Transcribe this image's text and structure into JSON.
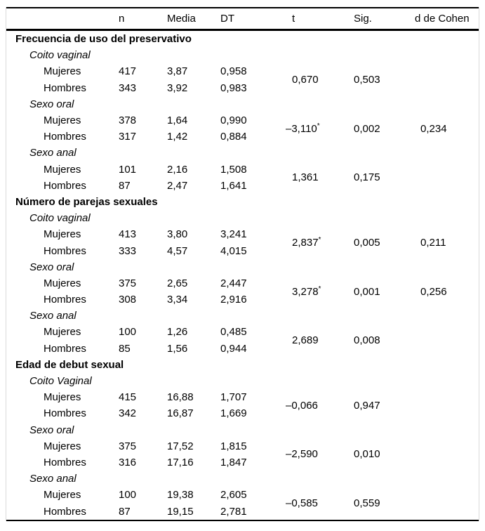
{
  "table": {
    "header": {
      "label": "",
      "columns": [
        "n",
        "Media",
        "DT",
        "t",
        "Sig.",
        "d de Cohen"
      ]
    },
    "sections": [
      {
        "title": "Frecuencia de uso del preservativo",
        "groups": [
          {
            "name": "Coito vaginal",
            "rows": [
              {
                "label": "Mujeres",
                "n": "417",
                "media": "3,87",
                "dt": "0,958"
              },
              {
                "label": "Hombres",
                "n": "343",
                "media": "3,92",
                "dt": "0,983"
              }
            ],
            "t": "0,670",
            "t_star": "",
            "sig": "0,503",
            "d": ""
          },
          {
            "name": "Sexo oral",
            "rows": [
              {
                "label": "Mujeres",
                "n": "378",
                "media": "1,64",
                "dt": "0,990"
              },
              {
                "label": "Hombres",
                "n": "317",
                "media": "1,42",
                "dt": "0,884"
              }
            ],
            "t": "–3,110",
            "t_star": "*",
            "sig": "0,002",
            "d": "0,234"
          },
          {
            "name": "Sexo anal",
            "rows": [
              {
                "label": "Mujeres",
                "n": "101",
                "media": "2,16",
                "dt": "1,508"
              },
              {
                "label": "Hombres",
                "n": "87",
                "media": "2,47",
                "dt": "1,641"
              }
            ],
            "t": "1,361",
            "t_star": "",
            "sig": "0,175",
            "d": ""
          }
        ]
      },
      {
        "title": "Número de parejas sexuales",
        "groups": [
          {
            "name": "Coito vaginal",
            "rows": [
              {
                "label": "Mujeres",
                "n": "413",
                "media": "3,80",
                "dt": "3,241"
              },
              {
                "label": "Hombres",
                "n": "333",
                "media": "4,57",
                "dt": "4,015"
              }
            ],
            "t": "2,837",
            "t_star": "*",
            "sig": "0,005",
            "d": "0,211"
          },
          {
            "name": "Sexo oral",
            "rows": [
              {
                "label": "Mujeres",
                "n": "375",
                "media": "2,65",
                "dt": "2,447"
              },
              {
                "label": "Hombres",
                "n": "308",
                "media": "3,34",
                "dt": "2,916"
              }
            ],
            "t": "3,278",
            "t_star": "*",
            "sig": "0,001",
            "d": "0,256"
          },
          {
            "name": "Sexo anal",
            "rows": [
              {
                "label": "Mujeres",
                "n": "100",
                "media": "1,26",
                "dt": "0,485"
              },
              {
                "label": "Hombres",
                "n": "85",
                "media": "1,56",
                "dt": "0,944"
              }
            ],
            "t": "2,689",
            "t_star": "",
            "sig": "0,008",
            "d": ""
          }
        ]
      },
      {
        "title": "Edad de debut sexual",
        "groups": [
          {
            "name": "Coito Vaginal",
            "rows": [
              {
                "label": "Mujeres",
                "n": "415",
                "media": "16,88",
                "dt": "1,707"
              },
              {
                "label": "Hombres",
                "n": "342",
                "media": "16,87",
                "dt": "1,669"
              }
            ],
            "t": "–0,066",
            "t_star": "",
            "sig": "0,947",
            "d": ""
          },
          {
            "name": "Sexo oral",
            "rows": [
              {
                "label": "Mujeres",
                "n": "375",
                "media": "17,52",
                "dt": "1,815"
              },
              {
                "label": "Hombres",
                "n": "316",
                "media": "17,16",
                "dt": "1,847"
              }
            ],
            "t": "–2,590",
            "t_star": "",
            "sig": "0,010",
            "d": ""
          },
          {
            "name": "Sexo anal",
            "rows": [
              {
                "label": "Mujeres",
                "n": "100",
                "media": "19,38",
                "dt": "2,605"
              },
              {
                "label": "Hombres",
                "n": "87",
                "media": "19,15",
                "dt": "2,781"
              }
            ],
            "t": "–0,585",
            "t_star": "",
            "sig": "0,559",
            "d": ""
          }
        ]
      }
    ]
  }
}
